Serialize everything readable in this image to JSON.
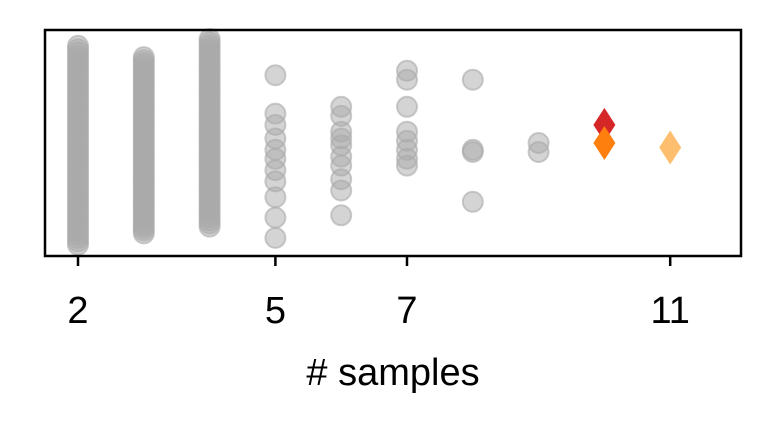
{
  "chart_data": {
    "type": "scatter",
    "xlabel": "# samples",
    "ylabel": "",
    "xlim": [
      1.5,
      12.5
    ],
    "ylim": [
      0,
      1
    ],
    "x_ticks": [
      2,
      5,
      7,
      11
    ],
    "x_tick_labels": [
      "2",
      "5",
      "7",
      "11"
    ],
    "grid": false,
    "colors": {
      "points": "#aaaaaa",
      "highlight_red": "#d62728",
      "highlight_orange": "#ff7f0e",
      "highlight_light_orange": "#fdbf6f"
    },
    "series": [
      {
        "marker": "circle",
        "columns": [
          {
            "x": 2,
            "y_min": 0.05,
            "y_max": 0.93,
            "dense": true
          },
          {
            "x": 3,
            "y_min": 0.1,
            "y_max": 0.88,
            "dense": true
          },
          {
            "x": 4,
            "y_min": 0.13,
            "y_max": 0.96,
            "dense": true
          }
        ],
        "points": [
          {
            "x": 5,
            "y": 0.8
          },
          {
            "x": 5,
            "y": 0.63
          },
          {
            "x": 5,
            "y": 0.58
          },
          {
            "x": 5,
            "y": 0.52
          },
          {
            "x": 5,
            "y": 0.47
          },
          {
            "x": 5,
            "y": 0.43
          },
          {
            "x": 5,
            "y": 0.38
          },
          {
            "x": 5,
            "y": 0.33
          },
          {
            "x": 5,
            "y": 0.26
          },
          {
            "x": 5,
            "y": 0.17
          },
          {
            "x": 5,
            "y": 0.08
          },
          {
            "x": 6,
            "y": 0.66
          },
          {
            "x": 6,
            "y": 0.62
          },
          {
            "x": 6,
            "y": 0.55
          },
          {
            "x": 6,
            "y": 0.52
          },
          {
            "x": 6,
            "y": 0.49
          },
          {
            "x": 6,
            "y": 0.44
          },
          {
            "x": 6,
            "y": 0.4
          },
          {
            "x": 6,
            "y": 0.34
          },
          {
            "x": 6,
            "y": 0.29
          },
          {
            "x": 6,
            "y": 0.18
          },
          {
            "x": 7,
            "y": 0.82
          },
          {
            "x": 7,
            "y": 0.78
          },
          {
            "x": 7,
            "y": 0.66
          },
          {
            "x": 7,
            "y": 0.55
          },
          {
            "x": 7,
            "y": 0.51
          },
          {
            "x": 7,
            "y": 0.47
          },
          {
            "x": 7,
            "y": 0.43
          },
          {
            "x": 7,
            "y": 0.4
          },
          {
            "x": 8,
            "y": 0.78
          },
          {
            "x": 8,
            "y": 0.47
          },
          {
            "x": 8,
            "y": 0.46
          },
          {
            "x": 8,
            "y": 0.24
          },
          {
            "x": 9,
            "y": 0.5
          },
          {
            "x": 9,
            "y": 0.46
          }
        ]
      },
      {
        "marker": "diamond",
        "points": [
          {
            "x": 10,
            "y": 0.58,
            "color": "#d62728"
          },
          {
            "x": 10,
            "y": 0.5,
            "color": "#ff7f0e"
          },
          {
            "x": 11,
            "y": 0.48,
            "color": "#fdbf6f"
          }
        ]
      }
    ]
  }
}
